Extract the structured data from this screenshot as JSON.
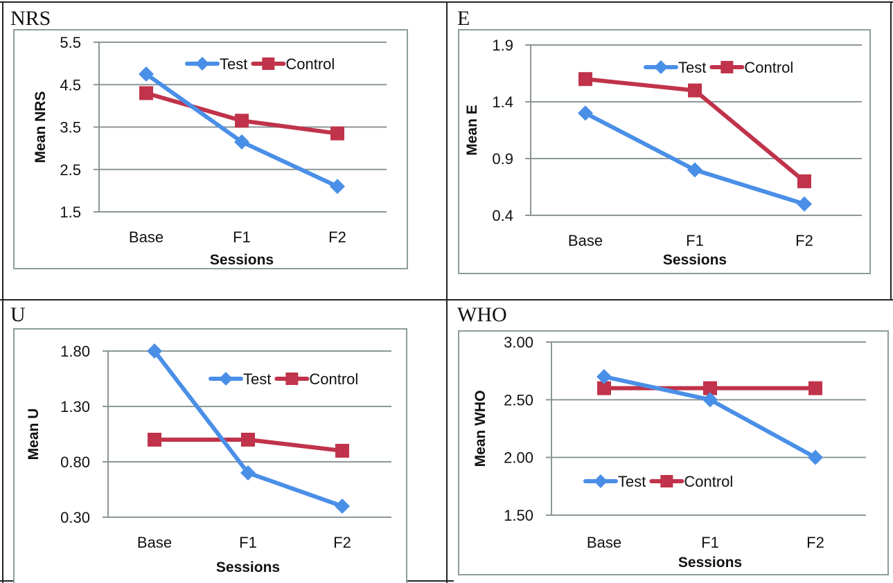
{
  "chart_data": [
    {
      "type": "line",
      "panel_label": "NRS",
      "title": "",
      "xlabel": "Sessions",
      "ylabel": "Mean NRS",
      "categories": [
        "Base",
        "F1",
        "F2"
      ],
      "ylim": [
        1.5,
        5.5
      ],
      "yticks": [
        1.5,
        2.5,
        3.5,
        4.5,
        5.5
      ],
      "ytick_labels": [
        "1.5",
        "2.5",
        "3.5",
        "4.5",
        "5.5"
      ],
      "grid": true,
      "legend": "top-right",
      "series": [
        {
          "name": "Test",
          "marker": "diamond",
          "color": "#4a8fe7",
          "values": [
            4.75,
            3.15,
            2.1
          ]
        },
        {
          "name": "Control",
          "marker": "square",
          "color": "#c0334a",
          "values": [
            4.3,
            3.65,
            3.35
          ]
        }
      ]
    },
    {
      "type": "line",
      "panel_label": "E",
      "title": "",
      "xlabel": "Sessions",
      "ylabel": "Mean E",
      "categories": [
        "Base",
        "F1",
        "F2"
      ],
      "ylim": [
        0.4,
        1.9
      ],
      "yticks": [
        0.4,
        0.9,
        1.4,
        1.9
      ],
      "ytick_labels": [
        "0.4",
        "0.9",
        "1.4",
        "1.9"
      ],
      "grid": true,
      "legend": "top-right",
      "series": [
        {
          "name": "Test",
          "marker": "diamond",
          "color": "#4a8fe7",
          "values": [
            1.3,
            0.8,
            0.5
          ]
        },
        {
          "name": "Control",
          "marker": "square",
          "color": "#c0334a",
          "values": [
            1.6,
            1.5,
            0.7
          ]
        }
      ]
    },
    {
      "type": "line",
      "panel_label": "U",
      "title": "",
      "xlabel": "Sessions",
      "ylabel": "Mean U",
      "categories": [
        "Base",
        "F1",
        "F2"
      ],
      "ylim": [
        0.3,
        1.8
      ],
      "yticks": [
        0.3,
        0.8,
        1.3,
        1.8
      ],
      "ytick_labels": [
        "0.30",
        "0.80",
        "1.30",
        "1.80"
      ],
      "grid": true,
      "legend": "top-right",
      "series": [
        {
          "name": "Test",
          "marker": "diamond",
          "color": "#4a8fe7",
          "values": [
            1.8,
            0.7,
            0.4
          ]
        },
        {
          "name": "Control",
          "marker": "square",
          "color": "#c0334a",
          "values": [
            1.0,
            1.0,
            0.9
          ]
        }
      ]
    },
    {
      "type": "line",
      "panel_label": "WHO",
      "title": "",
      "xlabel": "Sessions",
      "ylabel": "Mean WHO",
      "categories": [
        "Base",
        "F1",
        "F2"
      ],
      "ylim": [
        1.5,
        3.0
      ],
      "yticks": [
        1.5,
        2.0,
        2.5,
        3.0
      ],
      "ytick_labels": [
        "1.50",
        "2.00",
        "2.50",
        "3.00"
      ],
      "grid": true,
      "legend": "bottom-left",
      "series": [
        {
          "name": "Test",
          "marker": "diamond",
          "color": "#4a8fe7",
          "values": [
            2.7,
            2.5,
            2.0
          ]
        },
        {
          "name": "Control",
          "marker": "square",
          "color": "#c0334a",
          "values": [
            2.6,
            2.6,
            2.6
          ]
        }
      ]
    }
  ]
}
